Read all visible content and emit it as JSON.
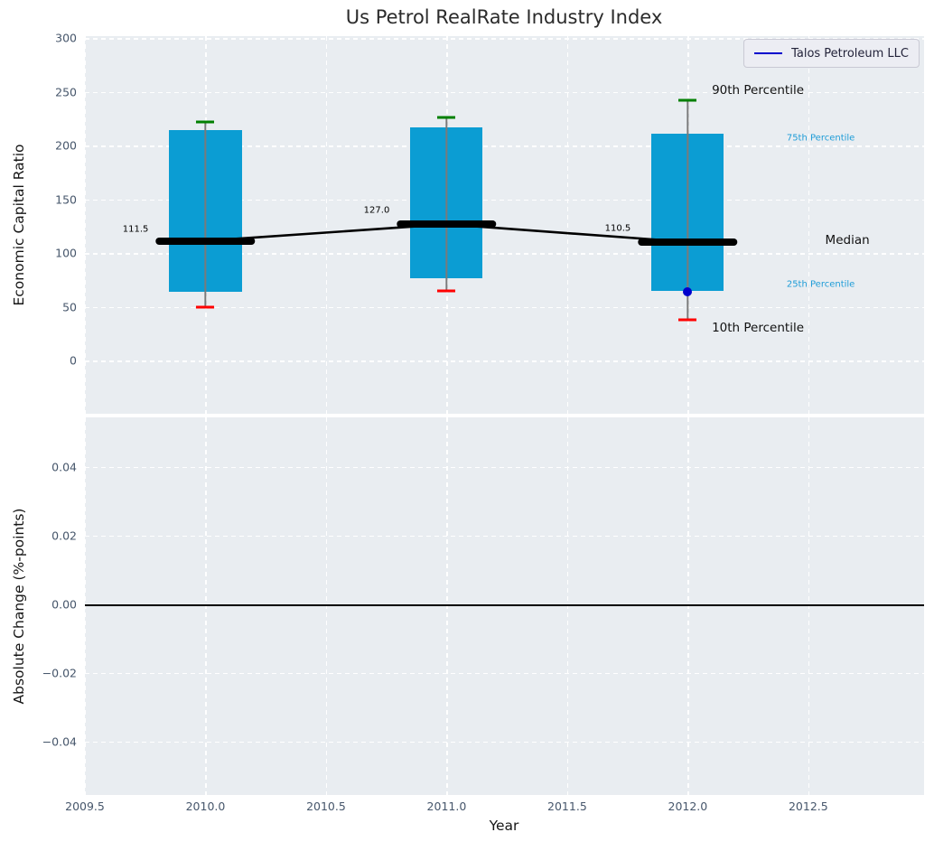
{
  "title": "Us Petrol RealRate Industry Index",
  "legend": {
    "label": "Talos Petroleum LLC",
    "line_color": "#0000cd",
    "position": "upper right"
  },
  "colors": {
    "box_fill": "#0b9dd3",
    "whisker": "#7a7a7a",
    "p90_cap": "#008000",
    "p10_cap": "#ff0000",
    "median": "#000000",
    "company": "#0000cd",
    "axes_bg": "#e9edf1",
    "grid": "#ffffff",
    "tick_label": "#46566b",
    "zero_line": "#000000",
    "small_percentile_label": "#1e9cd7",
    "big_percentile_label": "#111111"
  },
  "chart_data": [
    {
      "type": "box-whisker-timeseries",
      "panel": "top",
      "ylabel": "Economic Capital Ratio",
      "xlim": [
        2009.5,
        2012.98
      ],
      "ylim": [
        -49.3,
        302
      ],
      "grid": "white-dashed",
      "yticks": [
        {
          "v": 0,
          "label": "0"
        },
        {
          "v": 50,
          "label": "50"
        },
        {
          "v": 100,
          "label": "100"
        },
        {
          "v": 150,
          "label": "150"
        },
        {
          "v": 200,
          "label": "200"
        },
        {
          "v": 250,
          "label": "250"
        },
        {
          "v": 300,
          "label": "300"
        }
      ],
      "boxes": [
        {
          "year": 2010,
          "p10": 50,
          "p25": 64,
          "median": 111.5,
          "p75": 215,
          "p90": 222
        },
        {
          "year": 2011,
          "p10": 65,
          "p25": 77,
          "median": 127.0,
          "p75": 217,
          "p90": 226
        },
        {
          "year": 2012,
          "p10": 38,
          "p25": 65,
          "median": 110.5,
          "p75": 211,
          "p90": 242
        }
      ],
      "median_line": [
        [
          2010,
          111.5
        ],
        [
          2011,
          127.0
        ],
        [
          2012,
          110.5
        ]
      ],
      "company_series": {
        "name": "Talos Petroleum LLC",
        "points": [
          [
            2012,
            64
          ]
        ]
      },
      "annotations": [
        {
          "text": "111.5",
          "x": 2009.71,
          "y": 122.5,
          "size": 10,
          "color": "#000000",
          "anchor": "center"
        },
        {
          "text": "127.0",
          "x": 2010.71,
          "y": 139.8,
          "size": 10,
          "color": "#000000",
          "anchor": "center"
        },
        {
          "text": "110.5",
          "x": 2011.71,
          "y": 123.0,
          "size": 10,
          "color": "#000000",
          "anchor": "center"
        },
        {
          "text": "90th Percentile",
          "x": 2012.1,
          "y": 251.5,
          "size": 13.5,
          "color": "#111111",
          "anchor": "left"
        },
        {
          "text": "75th Percentile",
          "x": 2012.41,
          "y": 207.0,
          "size": 10,
          "color": "#1e9cd7",
          "anchor": "left"
        },
        {
          "text": "Median",
          "x": 2012.57,
          "y": 112.0,
          "size": 13.5,
          "color": "#111111",
          "anchor": "left"
        },
        {
          "text": "25th Percentile",
          "x": 2012.41,
          "y": 70.8,
          "size": 10,
          "color": "#1e9cd7",
          "anchor": "left"
        },
        {
          "text": "10th Percentile",
          "x": 2012.1,
          "y": 30.3,
          "size": 13.5,
          "color": "#111111",
          "anchor": "left"
        }
      ]
    },
    {
      "type": "line",
      "panel": "bottom",
      "ylabel": "Absolute Change (%-points)",
      "xlabel": "Year",
      "xlim": [
        2009.5,
        2012.98
      ],
      "ylim": [
        -0.0555,
        0.0545
      ],
      "grid": "white-dashed",
      "zero_line": true,
      "yticks": [
        {
          "v": -0.04,
          "label": "−0.04"
        },
        {
          "v": -0.02,
          "label": "−0.02"
        },
        {
          "v": 0,
          "label": "0.00"
        },
        {
          "v": 0.02,
          "label": "0.02"
        },
        {
          "v": 0.04,
          "label": "0.04"
        }
      ],
      "xticks": [
        {
          "v": 2009.5,
          "label": "2009.5"
        },
        {
          "v": 2010.0,
          "label": "2010.0"
        },
        {
          "v": 2010.5,
          "label": "2010.5"
        },
        {
          "v": 2011.0,
          "label": "2011.0"
        },
        {
          "v": 2011.5,
          "label": "2011.5"
        },
        {
          "v": 2012.0,
          "label": "2012.0"
        },
        {
          "v": 2012.5,
          "label": "2012.5"
        }
      ]
    }
  ]
}
